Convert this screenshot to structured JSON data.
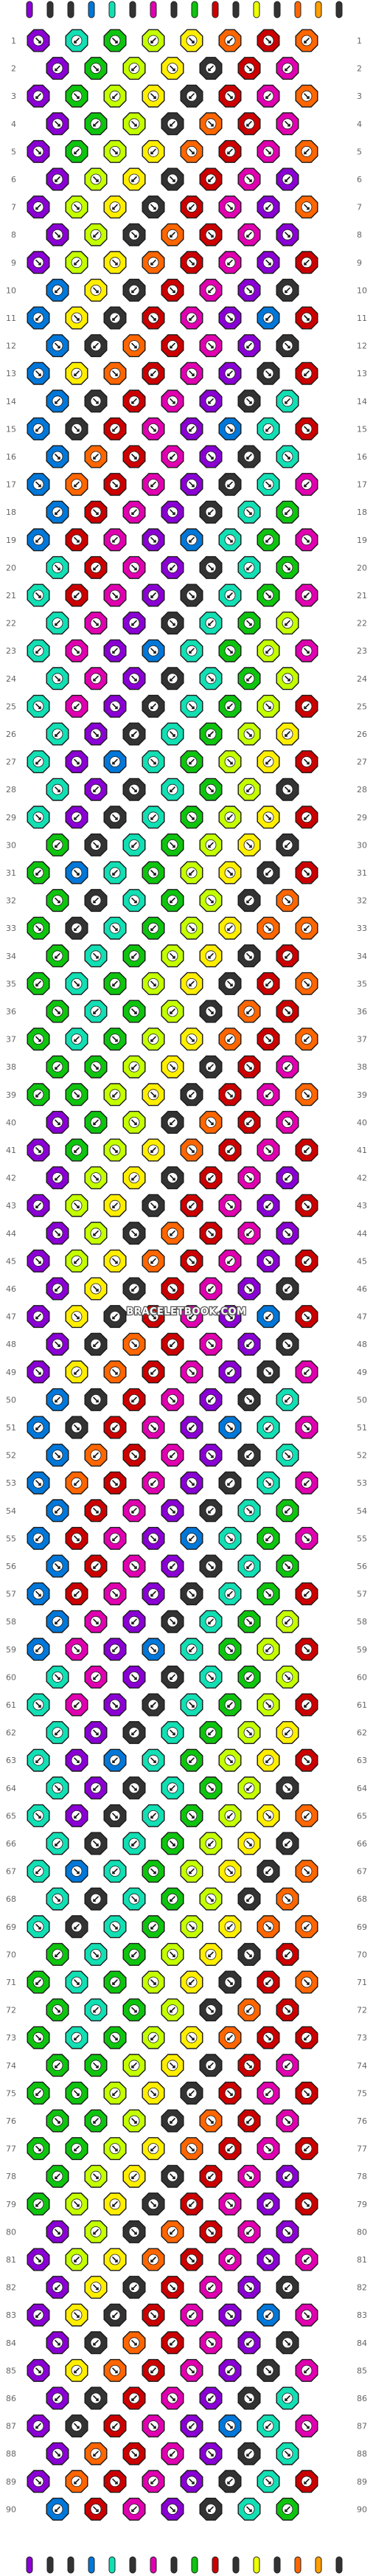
{
  "site": {
    "watermark": "BRACELETBOOK.COM"
  },
  "pattern": {
    "type": "normal-bracelet",
    "strings": 16,
    "rows": 90,
    "thread_colors": [
      "#8a00d4",
      "#333333",
      "#333333",
      "#0077d9",
      "#12dfb4",
      "#333333",
      "#e000b0",
      "#333333",
      "#0ec40e",
      "#cc0000",
      "#333333",
      "#eeff00",
      "#333333",
      "#ff6600",
      "#ffa000",
      "#333333"
    ],
    "palette": {
      "purple": "#8a00d4",
      "black": "#333333",
      "blue": "#0077d9",
      "aqua": "#12dfb4",
      "magenta": "#e000b0",
      "green": "#0ec40e",
      "red": "#cc0000",
      "yellow": "#ffee00",
      "lime": "#c4ff00",
      "orange": "#ff6600",
      "amber": "#ffa000"
    }
  }
}
